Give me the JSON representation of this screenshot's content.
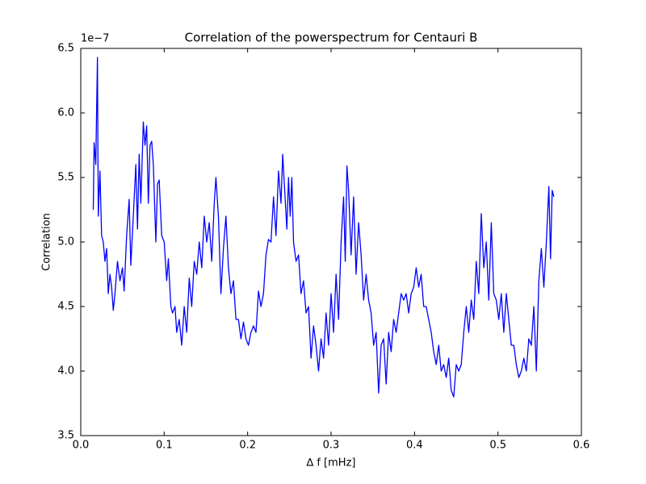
{
  "chart_data": {
    "type": "line",
    "title": "Correlation of the powerspectrum for Centauri B",
    "x_label": "∆ f [mHz]",
    "y_label": "Correlation",
    "y_offset_label": "1e−7",
    "xlim": [
      0,
      0.6
    ],
    "ylim": [
      3.5,
      6.5
    ],
    "xticks": [
      {
        "value": 0,
        "label": "0.0"
      },
      0.1,
      0.2,
      0.3,
      0.4,
      0.5,
      0.6
    ],
    "yticks": [
      3.5,
      {
        "value": 4,
        "label": "4.0"
      },
      4.5,
      {
        "value": 5,
        "label": "5.0"
      },
      5.5,
      {
        "value": 6,
        "label": "6.0"
      },
      6.5
    ],
    "x": [
      0.015,
      0.016,
      0.018,
      0.02,
      0.021,
      0.023,
      0.025,
      0.027,
      0.029,
      0.031,
      0.033,
      0.035,
      0.037,
      0.039,
      0.041,
      0.044,
      0.047,
      0.05,
      0.052,
      0.055,
      0.058,
      0.06,
      0.063,
      0.066,
      0.068,
      0.07,
      0.072,
      0.075,
      0.077,
      0.079,
      0.081,
      0.083,
      0.085,
      0.087,
      0.09,
      0.092,
      0.094,
      0.097,
      0.1,
      0.103,
      0.105,
      0.108,
      0.11,
      0.113,
      0.115,
      0.118,
      0.121,
      0.124,
      0.127,
      0.13,
      0.133,
      0.136,
      0.139,
      0.142,
      0.145,
      0.148,
      0.151,
      0.154,
      0.157,
      0.16,
      0.162,
      0.165,
      0.168,
      0.171,
      0.174,
      0.177,
      0.18,
      0.183,
      0.186,
      0.189,
      0.192,
      0.195,
      0.198,
      0.201,
      0.204,
      0.207,
      0.21,
      0.213,
      0.216,
      0.219,
      0.222,
      0.225,
      0.228,
      0.231,
      0.234,
      0.237,
      0.24,
      0.242,
      0.244,
      0.247,
      0.249,
      0.251,
      0.253,
      0.255,
      0.258,
      0.261,
      0.264,
      0.267,
      0.27,
      0.273,
      0.276,
      0.279,
      0.282,
      0.285,
      0.288,
      0.291,
      0.294,
      0.297,
      0.3,
      0.303,
      0.306,
      0.309,
      0.312,
      0.315,
      0.317,
      0.319,
      0.321,
      0.324,
      0.327,
      0.33,
      0.333,
      0.336,
      0.339,
      0.342,
      0.345,
      0.348,
      0.351,
      0.354,
      0.357,
      0.36,
      0.363,
      0.366,
      0.369,
      0.372,
      0.375,
      0.378,
      0.381,
      0.384,
      0.387,
      0.39,
      0.393,
      0.396,
      0.399,
      0.402,
      0.405,
      0.408,
      0.411,
      0.414,
      0.417,
      0.42,
      0.423,
      0.426,
      0.429,
      0.432,
      0.435,
      0.438,
      0.441,
      0.444,
      0.447,
      0.45,
      0.453,
      0.456,
      0.459,
      0.462,
      0.465,
      0.468,
      0.471,
      0.474,
      0.477,
      0.48,
      0.483,
      0.486,
      0.489,
      0.492,
      0.495,
      0.498,
      0.501,
      0.504,
      0.507,
      0.51,
      0.513,
      0.516,
      0.519,
      0.522,
      0.525,
      0.528,
      0.531,
      0.534,
      0.537,
      0.54,
      0.543,
      0.546,
      0.549,
      0.552,
      0.555,
      0.558,
      0.561,
      0.563,
      0.565,
      0.567
    ],
    "series": [
      {
        "color": "#0000ff",
        "values": [
          5.25,
          5.77,
          5.6,
          6.43,
          5.2,
          5.55,
          5.05,
          5.0,
          4.85,
          4.95,
          4.6,
          4.75,
          4.65,
          4.47,
          4.6,
          4.85,
          4.7,
          4.8,
          4.62,
          5.05,
          5.33,
          4.82,
          5.2,
          5.6,
          5.1,
          5.68,
          5.3,
          5.93,
          5.75,
          5.9,
          5.3,
          5.75,
          5.78,
          5.6,
          5.0,
          5.45,
          5.48,
          5.05,
          5.0,
          4.7,
          4.87,
          4.5,
          4.45,
          4.5,
          4.3,
          4.4,
          4.2,
          4.5,
          4.3,
          4.72,
          4.5,
          4.85,
          4.75,
          5.0,
          4.8,
          5.2,
          5.0,
          5.15,
          4.85,
          5.3,
          5.5,
          5.2,
          4.6,
          4.95,
          5.2,
          4.8,
          4.6,
          4.7,
          4.4,
          4.4,
          4.25,
          4.38,
          4.25,
          4.2,
          4.3,
          4.35,
          4.3,
          4.62,
          4.5,
          4.6,
          4.9,
          5.02,
          5.0,
          5.35,
          5.05,
          5.55,
          5.3,
          5.68,
          5.45,
          5.1,
          5.5,
          5.2,
          5.5,
          5.0,
          4.85,
          4.9,
          4.6,
          4.7,
          4.45,
          4.5,
          4.1,
          4.35,
          4.2,
          4.0,
          4.25,
          4.1,
          4.45,
          4.2,
          4.6,
          4.3,
          4.75,
          4.4,
          5.0,
          5.35,
          4.85,
          5.59,
          5.4,
          4.9,
          5.35,
          4.75,
          5.15,
          4.9,
          4.55,
          4.75,
          4.55,
          4.45,
          4.2,
          4.3,
          3.83,
          4.2,
          4.25,
          3.9,
          4.3,
          4.15,
          4.4,
          4.3,
          4.45,
          4.6,
          4.55,
          4.6,
          4.45,
          4.6,
          4.65,
          4.8,
          4.65,
          4.75,
          4.5,
          4.5,
          4.4,
          4.3,
          4.15,
          4.05,
          4.2,
          4.0,
          4.05,
          3.95,
          4.1,
          3.85,
          3.8,
          4.05,
          4.0,
          4.05,
          4.3,
          4.5,
          4.3,
          4.55,
          4.4,
          4.85,
          4.6,
          5.22,
          4.8,
          5.0,
          4.55,
          5.15,
          4.6,
          4.55,
          4.4,
          4.6,
          4.3,
          4.6,
          4.4,
          4.2,
          4.2,
          4.05,
          3.95,
          4.0,
          4.1,
          4.0,
          4.25,
          4.2,
          4.5,
          4.0,
          4.7,
          4.95,
          4.65,
          5.0,
          5.43,
          4.87,
          5.4,
          5.35
        ]
      }
    ]
  }
}
